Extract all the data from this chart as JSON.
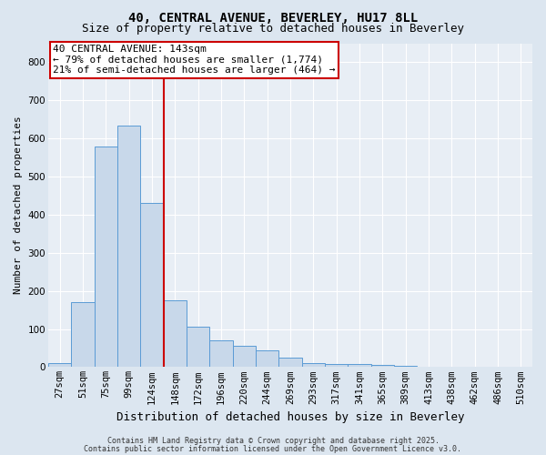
{
  "title_line1": "40, CENTRAL AVENUE, BEVERLEY, HU17 8LL",
  "title_line2": "Size of property relative to detached houses in Beverley",
  "xlabel": "Distribution of detached houses by size in Beverley",
  "ylabel": "Number of detached properties",
  "categories": [
    "27sqm",
    "51sqm",
    "75sqm",
    "99sqm",
    "124sqm",
    "148sqm",
    "172sqm",
    "196sqm",
    "220sqm",
    "244sqm",
    "269sqm",
    "293sqm",
    "317sqm",
    "341sqm",
    "365sqm",
    "389sqm",
    "413sqm",
    "438sqm",
    "462sqm",
    "486sqm",
    "510sqm"
  ],
  "values": [
    10,
    170,
    580,
    635,
    430,
    175,
    105,
    70,
    55,
    45,
    25,
    10,
    8,
    7,
    5,
    3,
    2,
    1,
    1,
    1,
    1
  ],
  "bar_color": "#c8d8ea",
  "bar_edgecolor": "#5b9bd5",
  "vline_color": "#cc0000",
  "annotation_text": "40 CENTRAL AVENUE: 143sqm\n← 79% of detached houses are smaller (1,774)\n21% of semi-detached houses are larger (464) →",
  "annotation_box_color": "#ffffff",
  "annotation_border_color": "#cc0000",
  "ylim": [
    0,
    850
  ],
  "yticks": [
    0,
    100,
    200,
    300,
    400,
    500,
    600,
    700,
    800
  ],
  "footnote1": "Contains HM Land Registry data © Crown copyright and database right 2025.",
  "footnote2": "Contains public sector information licensed under the Open Government Licence v3.0.",
  "bg_color": "#dce6f0",
  "axes_bg_color": "#e8eef5",
  "grid_color": "#ffffff",
  "title_fontsize": 10,
  "subtitle_fontsize": 9,
  "ylabel_fontsize": 8,
  "xlabel_fontsize": 9,
  "tick_fontsize": 7.5,
  "annot_fontsize": 8,
  "footnote_fontsize": 6
}
